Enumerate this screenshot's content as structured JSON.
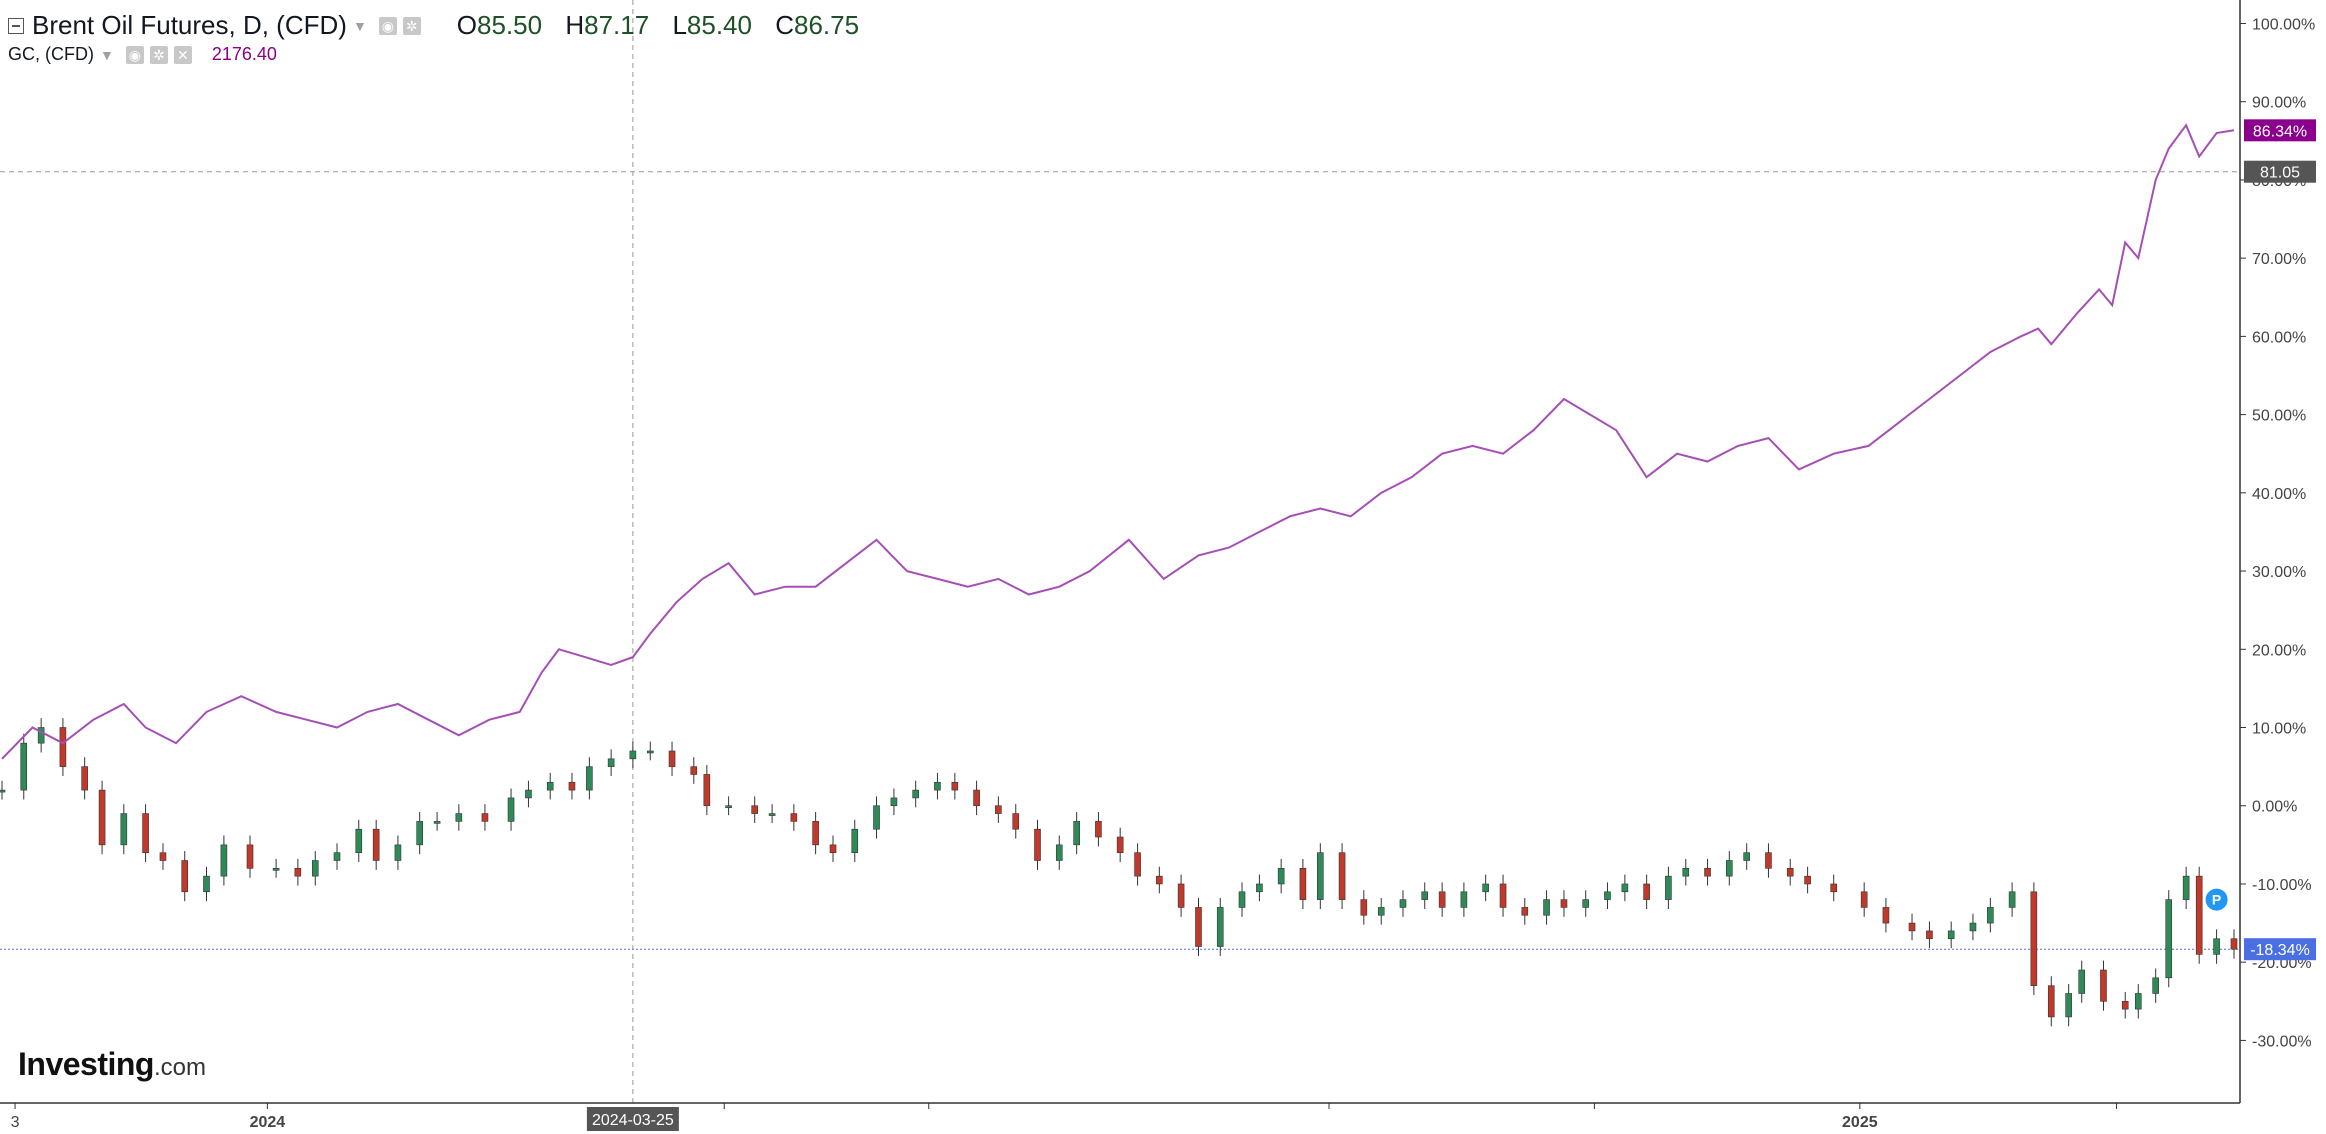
{
  "legend": {
    "main_title": "Brent Oil Futures, D, (CFD)",
    "open_label": "O",
    "open": "85.50",
    "high_label": "H",
    "high": "87.17",
    "low_label": "L",
    "low": "85.40",
    "close_label": "C",
    "close": "86.75",
    "compare_title": "GC, (CFD)",
    "compare_value": "2176.40"
  },
  "logo": {
    "brand": "Investing",
    "suffix": ".com"
  },
  "colors": {
    "gold_line": "#a54fb5",
    "candle_up": "#2e8b57",
    "candle_down": "#c0392b",
    "crosshair": "#999999",
    "brent_marker": "#4a6fe3",
    "gold_marker": "#8b008b",
    "cursor_label": "#555555",
    "axis_line": "#333333"
  },
  "icons": [
    "collapse-icon",
    "dropdown-caret-icon",
    "eye-icon",
    "settings-icon",
    "close-icon",
    "p-marker-icon"
  ],
  "chart_data": {
    "type": "line",
    "y_axis": {
      "unit": "%",
      "ticks": [
        "100.00%",
        "90.00%",
        "80.00%",
        "70.00%",
        "60.00%",
        "50.00%",
        "40.00%",
        "30.00%",
        "20.00%",
        "10.00%",
        "0.00%",
        "-10.00%",
        "-20.00%",
        "-30.00%"
      ],
      "ylim": [
        -38,
        103
      ]
    },
    "x_axis": {
      "tick_labels": [
        "3",
        "2024",
        "2025"
      ],
      "range": [
        "2023-11-01",
        "2025-03-28"
      ],
      "cursor_label": "2024-03-25"
    },
    "crosshair": {
      "x_date": "2024-03-25",
      "y_label": "81.05",
      "y_value": 81.05
    },
    "markers": {
      "brent_last": "-18.34%",
      "gold_last": "86.34%",
      "p_badge": "P"
    },
    "series": [
      {
        "name": "GC, (CFD)",
        "style": "line",
        "points": [
          [
            "2023-11-01",
            6
          ],
          [
            "2023-11-08",
            10
          ],
          [
            "2023-11-15",
            8
          ],
          [
            "2023-11-22",
            11
          ],
          [
            "2023-11-29",
            13
          ],
          [
            "2023-12-04",
            10
          ],
          [
            "2023-12-11",
            8
          ],
          [
            "2023-12-18",
            12
          ],
          [
            "2023-12-26",
            14
          ],
          [
            "2024-01-03",
            12
          ],
          [
            "2024-01-10",
            11
          ],
          [
            "2024-01-17",
            10
          ],
          [
            "2024-01-24",
            12
          ],
          [
            "2024-01-31",
            13
          ],
          [
            "2024-02-07",
            11
          ],
          [
            "2024-02-14",
            9
          ],
          [
            "2024-02-21",
            11
          ],
          [
            "2024-02-28",
            12
          ],
          [
            "2024-03-04",
            17
          ],
          [
            "2024-03-08",
            20
          ],
          [
            "2024-03-14",
            19
          ],
          [
            "2024-03-20",
            18
          ],
          [
            "2024-03-25",
            19
          ],
          [
            "2024-03-29",
            22
          ],
          [
            "2024-04-04",
            26
          ],
          [
            "2024-04-10",
            29
          ],
          [
            "2024-04-16",
            31
          ],
          [
            "2024-04-22",
            27
          ],
          [
            "2024-04-29",
            28
          ],
          [
            "2024-05-06",
            28
          ],
          [
            "2024-05-13",
            31
          ],
          [
            "2024-05-20",
            34
          ],
          [
            "2024-05-27",
            30
          ],
          [
            "2024-06-03",
            29
          ],
          [
            "2024-06-10",
            28
          ],
          [
            "2024-06-17",
            29
          ],
          [
            "2024-06-24",
            27
          ],
          [
            "2024-07-01",
            28
          ],
          [
            "2024-07-08",
            30
          ],
          [
            "2024-07-17",
            34
          ],
          [
            "2024-07-25",
            29
          ],
          [
            "2024-08-02",
            32
          ],
          [
            "2024-08-09",
            33
          ],
          [
            "2024-08-16",
            35
          ],
          [
            "2024-08-23",
            37
          ],
          [
            "2024-08-30",
            38
          ],
          [
            "2024-09-06",
            37
          ],
          [
            "2024-09-13",
            40
          ],
          [
            "2024-09-20",
            42
          ],
          [
            "2024-09-27",
            45
          ],
          [
            "2024-10-04",
            46
          ],
          [
            "2024-10-11",
            45
          ],
          [
            "2024-10-18",
            48
          ],
          [
            "2024-10-25",
            52
          ],
          [
            "2024-10-31",
            50
          ],
          [
            "2024-11-06",
            48
          ],
          [
            "2024-11-13",
            42
          ],
          [
            "2024-11-20",
            45
          ],
          [
            "2024-11-27",
            44
          ],
          [
            "2024-12-04",
            46
          ],
          [
            "2024-12-11",
            47
          ],
          [
            "2024-12-18",
            43
          ],
          [
            "2024-12-26",
            45
          ],
          [
            "2025-01-03",
            46
          ],
          [
            "2025-01-10",
            49
          ],
          [
            "2025-01-17",
            52
          ],
          [
            "2025-01-24",
            55
          ],
          [
            "2025-01-31",
            58
          ],
          [
            "2025-02-07",
            60
          ],
          [
            "2025-02-11",
            61
          ],
          [
            "2025-02-14",
            59
          ],
          [
            "2025-02-20",
            63
          ],
          [
            "2025-02-25",
            66
          ],
          [
            "2025-02-28",
            64
          ],
          [
            "2025-03-03",
            72
          ],
          [
            "2025-03-06",
            70
          ],
          [
            "2025-03-10",
            80
          ],
          [
            "2025-03-13",
            84
          ],
          [
            "2025-03-17",
            87
          ],
          [
            "2025-03-20",
            83
          ],
          [
            "2025-03-24",
            86
          ],
          [
            "2025-03-28",
            86.34
          ]
        ]
      },
      {
        "name": "Brent Oil Futures, D, (CFD)",
        "style": "candles",
        "points": [
          [
            "2023-11-01",
            2
          ],
          [
            "2023-11-06",
            8
          ],
          [
            "2023-11-10",
            10
          ],
          [
            "2023-11-15",
            5
          ],
          [
            "2023-11-20",
            2
          ],
          [
            "2023-11-24",
            -5
          ],
          [
            "2023-11-29",
            -1
          ],
          [
            "2023-12-04",
            -6
          ],
          [
            "2023-12-08",
            -7
          ],
          [
            "2023-12-13",
            -11
          ],
          [
            "2023-12-18",
            -9
          ],
          [
            "2023-12-22",
            -5
          ],
          [
            "2023-12-28",
            -8
          ],
          [
            "2024-01-03",
            -8
          ],
          [
            "2024-01-08",
            -9
          ],
          [
            "2024-01-12",
            -7
          ],
          [
            "2024-01-17",
            -6
          ],
          [
            "2024-01-22",
            -3
          ],
          [
            "2024-01-26",
            -7
          ],
          [
            "2024-01-31",
            -5
          ],
          [
            "2024-02-05",
            -2
          ],
          [
            "2024-02-09",
            -2
          ],
          [
            "2024-02-14",
            -1
          ],
          [
            "2024-02-20",
            -2
          ],
          [
            "2024-02-26",
            1
          ],
          [
            "2024-03-01",
            2
          ],
          [
            "2024-03-06",
            3
          ],
          [
            "2024-03-11",
            2
          ],
          [
            "2024-03-15",
            5
          ],
          [
            "2024-03-20",
            6
          ],
          [
            "2024-03-25",
            7
          ],
          [
            "2024-03-29",
            7
          ],
          [
            "2024-04-03",
            5
          ],
          [
            "2024-04-08",
            4
          ],
          [
            "2024-04-11",
            0
          ],
          [
            "2024-04-16",
            0
          ],
          [
            "2024-04-22",
            -1
          ],
          [
            "2024-04-26",
            -1
          ],
          [
            "2024-05-01",
            -2
          ],
          [
            "2024-05-06",
            -5
          ],
          [
            "2024-05-10",
            -6
          ],
          [
            "2024-05-15",
            -3
          ],
          [
            "2024-05-20",
            0
          ],
          [
            "2024-05-24",
            1
          ],
          [
            "2024-05-29",
            2
          ],
          [
            "2024-06-03",
            3
          ],
          [
            "2024-06-07",
            2
          ],
          [
            "2024-06-12",
            0
          ],
          [
            "2024-06-17",
            -1
          ],
          [
            "2024-06-21",
            -3
          ],
          [
            "2024-06-26",
            -7
          ],
          [
            "2024-07-01",
            -5
          ],
          [
            "2024-07-05",
            -2
          ],
          [
            "2024-07-10",
            -4
          ],
          [
            "2024-07-15",
            -6
          ],
          [
            "2024-07-19",
            -9
          ],
          [
            "2024-07-24",
            -10
          ],
          [
            "2024-07-29",
            -13
          ],
          [
            "2024-08-02",
            -18
          ],
          [
            "2024-08-07",
            -13
          ],
          [
            "2024-08-12",
            -11
          ],
          [
            "2024-08-16",
            -10
          ],
          [
            "2024-08-21",
            -8
          ],
          [
            "2024-08-26",
            -12
          ],
          [
            "2024-08-30",
            -6
          ],
          [
            "2024-09-04",
            -12
          ],
          [
            "2024-09-09",
            -14
          ],
          [
            "2024-09-13",
            -13
          ],
          [
            "2024-09-18",
            -12
          ],
          [
            "2024-09-23",
            -11
          ],
          [
            "2024-09-27",
            -13
          ],
          [
            "2024-10-02",
            -11
          ],
          [
            "2024-10-07",
            -10
          ],
          [
            "2024-10-11",
            -13
          ],
          [
            "2024-10-16",
            -14
          ],
          [
            "2024-10-21",
            -12
          ],
          [
            "2024-10-25",
            -13
          ],
          [
            "2024-10-30",
            -12
          ],
          [
            "2024-11-04",
            -11
          ],
          [
            "2024-11-08",
            -10
          ],
          [
            "2024-11-13",
            -12
          ],
          [
            "2024-11-18",
            -9
          ],
          [
            "2024-11-22",
            -8
          ],
          [
            "2024-11-27",
            -9
          ],
          [
            "2024-12-02",
            -7
          ],
          [
            "2024-12-06",
            -6
          ],
          [
            "2024-12-11",
            -8
          ],
          [
            "2024-12-16",
            -9
          ],
          [
            "2024-12-20",
            -10
          ],
          [
            "2024-12-26",
            -11
          ],
          [
            "2025-01-02",
            -13
          ],
          [
            "2025-01-07",
            -15
          ],
          [
            "2025-01-13",
            -16
          ],
          [
            "2025-01-17",
            -17
          ],
          [
            "2025-01-22",
            -16
          ],
          [
            "2025-01-27",
            -15
          ],
          [
            "2025-01-31",
            -13
          ],
          [
            "2025-02-05",
            -11
          ],
          [
            "2025-02-10",
            -23
          ],
          [
            "2025-02-14",
            -27
          ],
          [
            "2025-02-18",
            -24
          ],
          [
            "2025-02-21",
            -21
          ],
          [
            "2025-02-26",
            -25
          ],
          [
            "2025-03-03",
            -26
          ],
          [
            "2025-03-06",
            -24
          ],
          [
            "2025-03-10",
            -22
          ],
          [
            "2025-03-13",
            -12
          ],
          [
            "2025-03-17",
            -9
          ],
          [
            "2025-03-20",
            -19
          ],
          [
            "2025-03-24",
            -17
          ],
          [
            "2025-03-28",
            -18.34
          ]
        ]
      }
    ]
  }
}
